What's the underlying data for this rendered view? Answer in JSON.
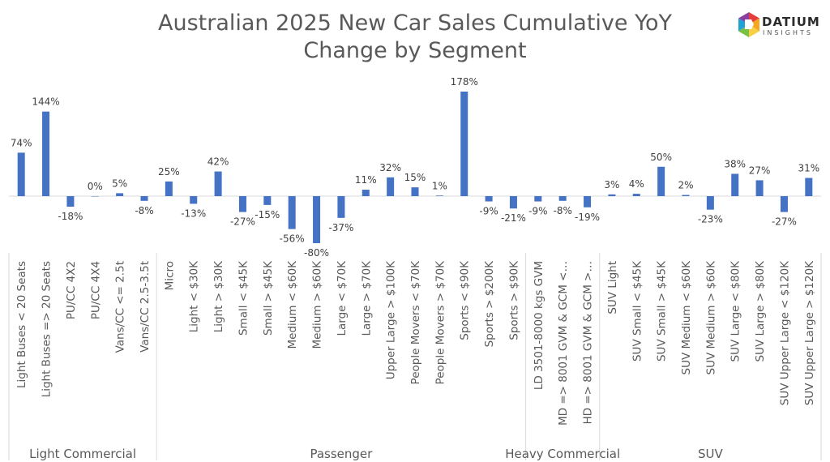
{
  "chart_data": {
    "type": "bar",
    "title_lines": [
      "Australian 2025 New Car Sales Cumulative YoY",
      "Change by Segment"
    ],
    "series": [
      {
        "color": "#4472c4"
      }
    ],
    "categories": [
      "Light Buses < 20 Seats",
      "Light Buses => 20 Seats",
      "PU/CC 4X2",
      "PU/CC 4X4",
      "Vans/CC <= 2.5t",
      "Vans/CC 2.5-3.5t",
      "Micro",
      "Light < $30K",
      "Light > $30K",
      "Small < $45K",
      "Small > $45K",
      "Medium < $60K",
      "Medium > $60K",
      "Large < $70K",
      "Large > $70K",
      "Upper Large > $100K",
      "People Movers < $70K",
      "People Movers > $70K",
      "Sports < $90K",
      "Sports > $200K",
      "Sports > $90K",
      "LD 3501-8000 kgs GVM",
      "MD => 8001 GVM & GCM <…",
      "HD => 8001 GVM & GCM >…",
      "SUV Light",
      "SUV Small < $45K",
      "SUV Small > $45K",
      "SUV Medium < $60K",
      "SUV Medium > $60K",
      "SUV Large < $80K",
      "SUV Large > $80K",
      "SUV Upper Large < $120K",
      "SUV Upper Large > $120K"
    ],
    "values": [
      74,
      144,
      -18,
      0,
      5,
      -8,
      25,
      -13,
      42,
      -27,
      -15,
      -56,
      -80,
      -37,
      11,
      32,
      15,
      1,
      178,
      -9,
      -21,
      -9,
      -8,
      -19,
      3,
      4,
      50,
      2,
      -23,
      38,
      27,
      -27,
      31
    ],
    "data_labels": [
      "74%",
      "144%",
      "-18%",
      "0%",
      "5%",
      "-8%",
      "25%",
      "-13%",
      "42%",
      "-27%",
      "-15%",
      "-56%",
      "-80%",
      "-37%",
      "11%",
      "32%",
      "15%",
      "1%",
      "178%",
      "-9%",
      "-21%",
      "-9%",
      "-8%",
      "-19%",
      "3%",
      "4%",
      "50%",
      "2%",
      "-23%",
      "38%",
      "27%",
      "-27%",
      "31%"
    ],
    "groups": [
      {
        "label": "Light Commercial",
        "start": 0,
        "end": 5
      },
      {
        "label": "Passenger",
        "start": 6,
        "end": 20
      },
      {
        "label": "Heavy Commercial",
        "start": 21,
        "end": 23
      },
      {
        "label": "SUV",
        "start": 24,
        "end": 32
      }
    ],
    "ylim": [
      -80,
      178
    ],
    "grid": false
  },
  "logo": {
    "word": "DATIUM",
    "sub": "INSIGHTS"
  }
}
